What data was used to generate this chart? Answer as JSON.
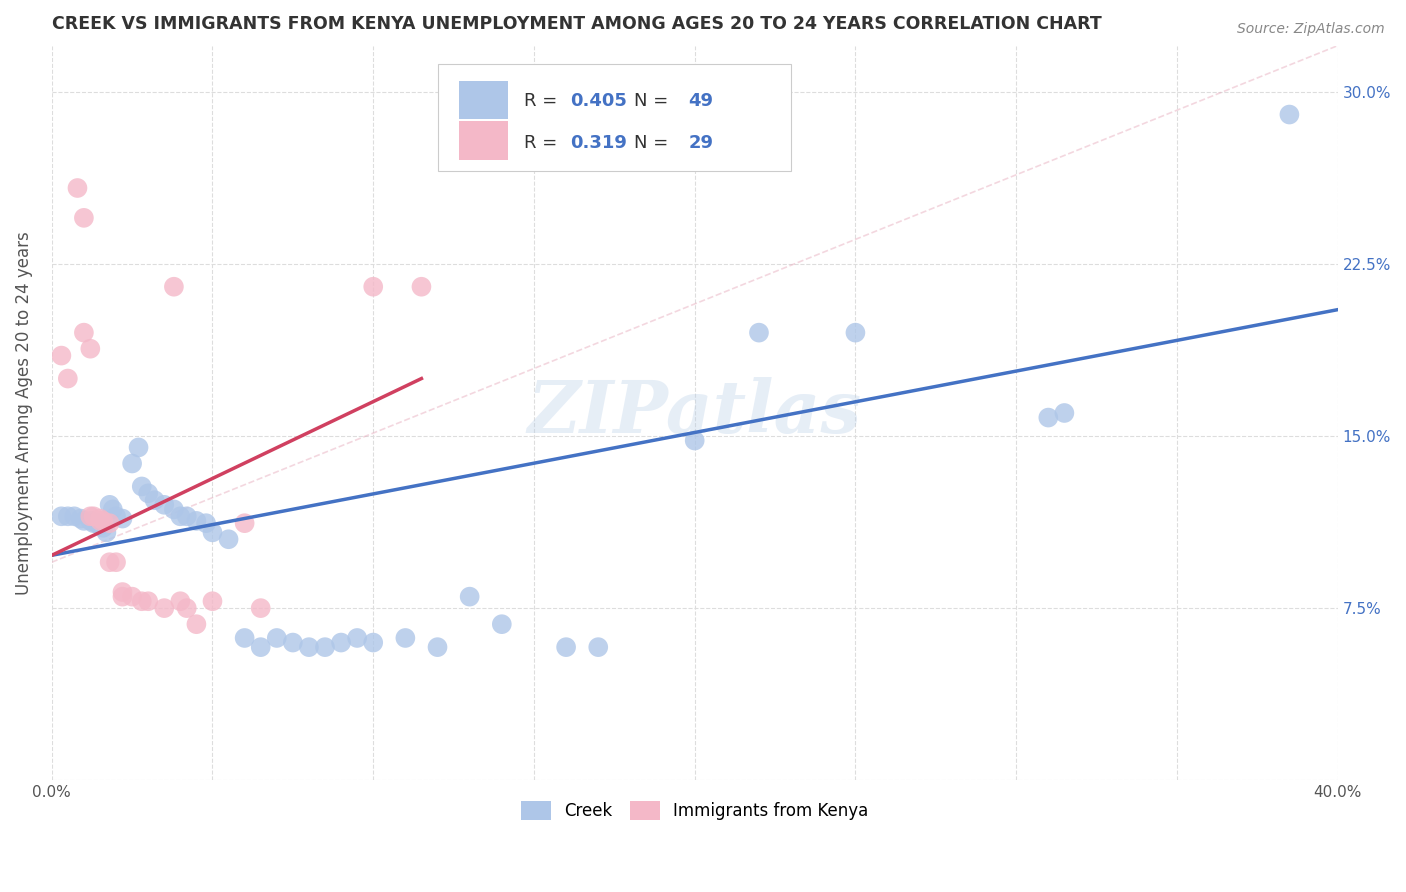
{
  "title": "CREEK VS IMMIGRANTS FROM KENYA UNEMPLOYMENT AMONG AGES 20 TO 24 YEARS CORRELATION CHART",
  "source": "Source: ZipAtlas.com",
  "ylabel": "Unemployment Among Ages 20 to 24 years",
  "xlim": [
    0.0,
    0.4
  ],
  "ylim": [
    0.0,
    0.32
  ],
  "yticks": [
    0.0,
    0.075,
    0.15,
    0.225,
    0.3
  ],
  "yticklabels_right": [
    "",
    "7.5%",
    "15.0%",
    "22.5%",
    "30.0%"
  ],
  "creek_R": "0.405",
  "creek_N": "49",
  "kenya_R": "0.319",
  "kenya_N": "29",
  "watermark": "ZIPatlas",
  "background_color": "#ffffff",
  "grid_color": "#dddddd",
  "creek_color": "#aec6e8",
  "creek_line_color": "#4472c4",
  "kenya_color": "#f4b8c8",
  "kenya_line_color": "#d04060",
  "creek_scatter": [
    [
      0.003,
      0.115
    ],
    [
      0.005,
      0.115
    ],
    [
      0.007,
      0.115
    ],
    [
      0.009,
      0.114
    ],
    [
      0.01,
      0.113
    ],
    [
      0.012,
      0.113
    ],
    [
      0.013,
      0.112
    ],
    [
      0.014,
      0.112
    ],
    [
      0.015,
      0.111
    ],
    [
      0.016,
      0.11
    ],
    [
      0.017,
      0.108
    ],
    [
      0.018,
      0.12
    ],
    [
      0.019,
      0.118
    ],
    [
      0.02,
      0.115
    ],
    [
      0.022,
      0.114
    ],
    [
      0.025,
      0.138
    ],
    [
      0.027,
      0.145
    ],
    [
      0.028,
      0.128
    ],
    [
      0.03,
      0.125
    ],
    [
      0.032,
      0.122
    ],
    [
      0.035,
      0.12
    ],
    [
      0.038,
      0.118
    ],
    [
      0.04,
      0.115
    ],
    [
      0.042,
      0.115
    ],
    [
      0.045,
      0.113
    ],
    [
      0.048,
      0.112
    ],
    [
      0.05,
      0.108
    ],
    [
      0.055,
      0.105
    ],
    [
      0.06,
      0.062
    ],
    [
      0.065,
      0.058
    ],
    [
      0.07,
      0.062
    ],
    [
      0.075,
      0.06
    ],
    [
      0.08,
      0.058
    ],
    [
      0.085,
      0.058
    ],
    [
      0.09,
      0.06
    ],
    [
      0.095,
      0.062
    ],
    [
      0.1,
      0.06
    ],
    [
      0.11,
      0.062
    ],
    [
      0.12,
      0.058
    ],
    [
      0.13,
      0.08
    ],
    [
      0.14,
      0.068
    ],
    [
      0.16,
      0.058
    ],
    [
      0.17,
      0.058
    ],
    [
      0.2,
      0.148
    ],
    [
      0.22,
      0.195
    ],
    [
      0.25,
      0.195
    ],
    [
      0.31,
      0.158
    ],
    [
      0.315,
      0.16
    ],
    [
      0.385,
      0.29
    ]
  ],
  "kenya_scatter": [
    [
      0.003,
      0.185
    ],
    [
      0.005,
      0.175
    ],
    [
      0.008,
      0.258
    ],
    [
      0.01,
      0.245
    ],
    [
      0.01,
      0.195
    ],
    [
      0.012,
      0.188
    ],
    [
      0.012,
      0.115
    ],
    [
      0.013,
      0.115
    ],
    [
      0.015,
      0.114
    ],
    [
      0.015,
      0.113
    ],
    [
      0.016,
      0.113
    ],
    [
      0.018,
      0.112
    ],
    [
      0.018,
      0.095
    ],
    [
      0.02,
      0.095
    ],
    [
      0.022,
      0.082
    ],
    [
      0.022,
      0.08
    ],
    [
      0.025,
      0.08
    ],
    [
      0.028,
      0.078
    ],
    [
      0.03,
      0.078
    ],
    [
      0.035,
      0.075
    ],
    [
      0.038,
      0.215
    ],
    [
      0.04,
      0.078
    ],
    [
      0.042,
      0.075
    ],
    [
      0.045,
      0.068
    ],
    [
      0.05,
      0.078
    ],
    [
      0.06,
      0.112
    ],
    [
      0.065,
      0.075
    ],
    [
      0.1,
      0.215
    ],
    [
      0.115,
      0.215
    ]
  ],
  "creek_trendline": [
    [
      0.0,
      0.098
    ],
    [
      0.4,
      0.205
    ]
  ],
  "kenya_trendline": [
    [
      0.0,
      0.098
    ],
    [
      0.115,
      0.175
    ]
  ],
  "kenya_dashed_line": [
    [
      0.0,
      0.095
    ],
    [
      0.4,
      0.32
    ]
  ]
}
